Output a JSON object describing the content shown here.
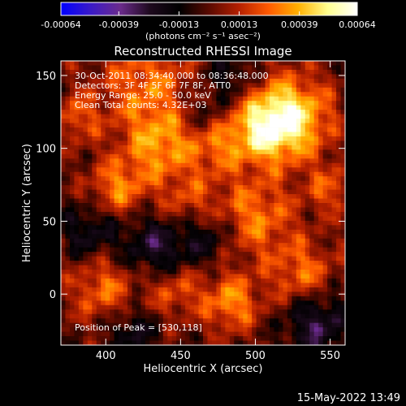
{
  "chart_data": {
    "type": "heatmap",
    "title": "Reconstructed RHESSI Image",
    "xlabel": "Heliocentric X (arcsec)",
    "ylabel": "Heliocentric Y (arcsec)",
    "xlim": [
      370,
      560
    ],
    "ylim": [
      -35,
      160
    ],
    "x_ticks": [
      400,
      450,
      500,
      550
    ],
    "y_ticks": [
      0,
      50,
      100,
      150
    ],
    "colorbar": {
      "ticks": [
        "-0.00064",
        "-0.00039",
        "-0.00013",
        "0.00013",
        "0.00039",
        "0.00064"
      ],
      "tick_values": [
        -0.00064,
        -0.00039,
        -0.00013,
        0.00013,
        0.00039,
        0.00064
      ],
      "range": [
        -0.00064,
        0.00064
      ],
      "unit_label": "(photons cm⁻² s⁻¹ asec⁻²)",
      "colormap": [
        "#0000ff",
        "#3a1ac8",
        "#6b2b8c",
        "#1e0a1e",
        "#000000",
        "#5a0a00",
        "#b42000",
        "#ff5a00",
        "#ffb000",
        "#ffff90",
        "#ffffff"
      ]
    },
    "annotations": [
      "30-Oct-2011 08:34:40.000 to 08:36:48.000",
      "Detectors: 3F 4F 5F 6F 7F 8F, ATT0",
      "Energy Range: 25.0 - 50.0 keV",
      "Clean     Total counts: 4.32E+03",
      "Position of Peak = [530,118]"
    ],
    "peak": {
      "x": 530,
      "y": 118
    },
    "grid": false
  },
  "footer": {
    "timestamp": "15-May-2022 13:49"
  }
}
